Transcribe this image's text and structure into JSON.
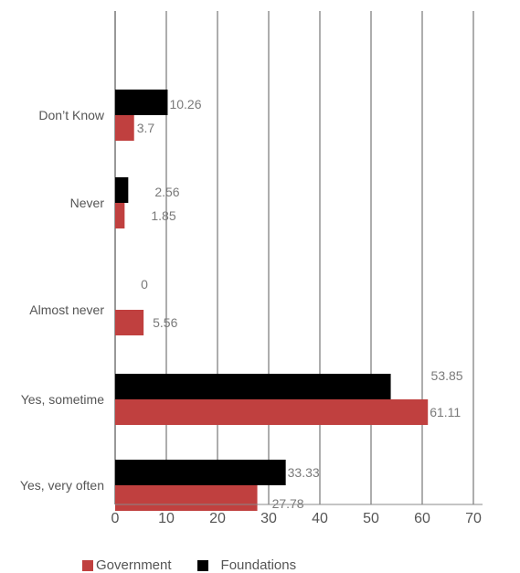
{
  "chart_data": {
    "type": "bar",
    "orientation": "horizontal",
    "categories": [
      "Don’t Know",
      "Never",
      "Almost never",
      "Yes, sometime",
      "Yes, very often"
    ],
    "series": [
      {
        "name": "Foundations",
        "values": [
          10.26,
          2.56,
          0,
          53.85,
          33.33
        ],
        "labels": [
          "10.26",
          "2.56",
          "0",
          "53.85",
          "33.33"
        ],
        "color": "#000000"
      },
      {
        "name": "Government",
        "values": [
          3.7,
          1.85,
          5.56,
          61.11,
          27.78
        ],
        "labels": [
          "3.7",
          "1.85",
          "5.56",
          "61.11",
          "27.78"
        ],
        "color": "#c0403f"
      }
    ],
    "xlim": [
      0,
      80
    ],
    "xticks": [
      "0",
      "10",
      "20",
      "30",
      "40",
      "50",
      "60",
      "70"
    ],
    "grid": "vertical",
    "legend_position": "bottom",
    "legend": [
      "Government",
      "Foundations"
    ]
  }
}
